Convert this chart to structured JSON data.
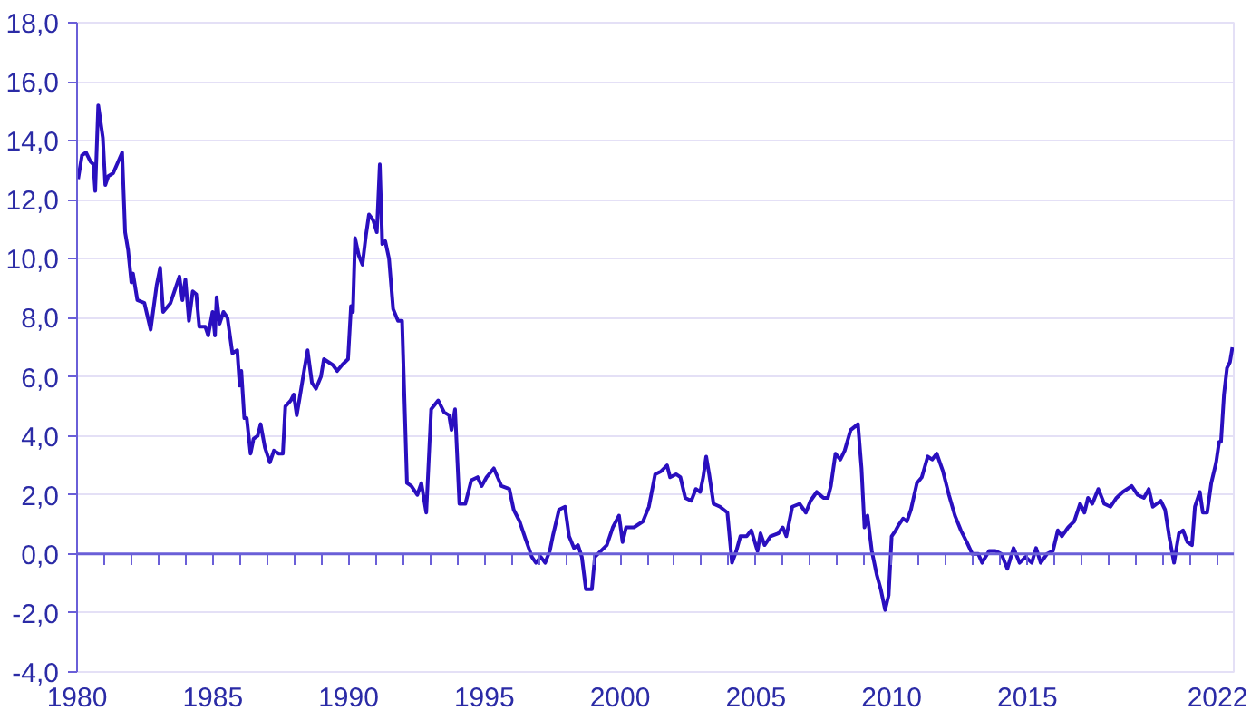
{
  "chart_data": {
    "type": "line",
    "color": "#2a0fbf",
    "grid": "y",
    "line_style": "solid",
    "ref_lines": [
      {
        "axis": "y",
        "value": 0,
        "color": "#6a5fd8"
      }
    ],
    "xlim": [
      1980,
      2022.6
    ],
    "ylim": [
      -4,
      18
    ],
    "yticks": [
      {
        "value": -4,
        "label": "-4,0"
      },
      {
        "value": -2,
        "label": "-2,0"
      },
      {
        "value": 0,
        "label": "0,0"
      },
      {
        "value": 2,
        "label": "2,0"
      },
      {
        "value": 4,
        "label": "4,0"
      },
      {
        "value": 6,
        "label": "6,0"
      },
      {
        "value": 8,
        "label": "8,0"
      },
      {
        "value": 10,
        "label": "10,0"
      },
      {
        "value": 12,
        "label": "12,0"
      },
      {
        "value": 14,
        "label": "14,0"
      },
      {
        "value": 16,
        "label": "16,0"
      },
      {
        "value": 18,
        "label": "18,0"
      }
    ],
    "xticks": [
      1980,
      {
        "value": 1981,
        "label": null
      },
      {
        "value": 1982,
        "label": null
      },
      {
        "value": 1983,
        "label": null
      },
      {
        "value": 1984,
        "label": null
      },
      1985,
      {
        "value": 1986,
        "label": null
      },
      {
        "value": 1987,
        "label": null
      },
      {
        "value": 1988,
        "label": null
      },
      {
        "value": 1989,
        "label": null
      },
      1990,
      {
        "value": 1991,
        "label": null
      },
      {
        "value": 1992,
        "label": null
      },
      {
        "value": 1993,
        "label": null
      },
      {
        "value": 1994,
        "label": null
      },
      1995,
      {
        "value": 1996,
        "label": null
      },
      {
        "value": 1997,
        "label": null
      },
      {
        "value": 1998,
        "label": null
      },
      {
        "value": 1999,
        "label": null
      },
      2000,
      {
        "value": 2001,
        "label": null
      },
      {
        "value": 2002,
        "label": null
      },
      {
        "value": 2003,
        "label": null
      },
      {
        "value": 2004,
        "label": null
      },
      2005,
      {
        "value": 2006,
        "label": null
      },
      {
        "value": 2007,
        "label": null
      },
      {
        "value": 2008,
        "label": null
      },
      {
        "value": 2009,
        "label": null
      },
      2010,
      {
        "value": 2011,
        "label": null
      },
      {
        "value": 2012,
        "label": null
      },
      {
        "value": 2013,
        "label": null
      },
      {
        "value": 2014,
        "label": null
      },
      2015,
      {
        "value": 2016,
        "label": null
      },
      {
        "value": 2017,
        "label": null
      },
      {
        "value": 2018,
        "label": null
      },
      {
        "value": 2019,
        "label": null
      },
      {
        "value": 2020,
        "label": null
      },
      {
        "value": 2021,
        "label": null
      },
      2022
    ],
    "x": [
      1980.04,
      1980.18,
      1980.33,
      1980.49,
      1980.6,
      1980.67,
      1980.78,
      1980.95,
      1981.04,
      1981.15,
      1981.33,
      1981.66,
      1981.77,
      1981.88,
      1982.0,
      1982.06,
      1982.22,
      1982.48,
      1982.71,
      1982.93,
      1983.06,
      1983.17,
      1983.44,
      1983.77,
      1983.88,
      1983.99,
      1984.12,
      1984.26,
      1984.39,
      1984.5,
      1984.72,
      1984.83,
      1984.99,
      1985.08,
      1985.14,
      1985.25,
      1985.39,
      1985.54,
      1985.72,
      1985.9,
      1985.99,
      1986.05,
      1986.16,
      1986.25,
      1986.39,
      1986.5,
      1986.65,
      1986.76,
      1986.92,
      1987.1,
      1987.25,
      1987.43,
      1987.58,
      1987.67,
      1987.87,
      1987.98,
      1988.09,
      1988.2,
      1988.36,
      1988.49,
      1988.65,
      1988.8,
      1988.98,
      1989.09,
      1989.42,
      1989.58,
      1989.76,
      1989.98,
      1990.09,
      1990.16,
      1990.24,
      1990.38,
      1990.51,
      1990.64,
      1990.75,
      1990.91,
      1991.04,
      1991.15,
      1991.24,
      1991.35,
      1991.49,
      1991.64,
      1991.82,
      1991.97,
      1992.15,
      1992.31,
      1992.53,
      1992.68,
      1992.86,
      1993.04,
      1993.3,
      1993.52,
      1993.7,
      1993.79,
      1993.92,
      1994.08,
      1994.3,
      1994.52,
      1994.75,
      1994.9,
      1995.08,
      1995.35,
      1995.63,
      1995.92,
      1996.08,
      1996.3,
      1996.52,
      1996.75,
      1996.9,
      1997.08,
      1997.24,
      1997.41,
      1997.52,
      1997.75,
      1997.97,
      1998.12,
      1998.3,
      1998.45,
      1998.59,
      1998.74,
      1998.96,
      1999.07,
      1999.29,
      1999.51,
      1999.73,
      1999.96,
      2000.09,
      2000.22,
      2000.51,
      2000.84,
      2001.06,
      2001.29,
      2001.51,
      2001.73,
      2001.84,
      2002.06,
      2002.22,
      2002.4,
      2002.62,
      2002.79,
      2002.95,
      2003.06,
      2003.17,
      2003.28,
      2003.44,
      2003.68,
      2003.95,
      2004.12,
      2004.28,
      2004.43,
      2004.66,
      2004.83,
      2005.06,
      2005.17,
      2005.32,
      2005.54,
      2005.83,
      2005.99,
      2006.12,
      2006.34,
      2006.61,
      2006.84,
      2007.01,
      2007.24,
      2007.49,
      2007.65,
      2007.76,
      2007.93,
      2008.11,
      2008.27,
      2008.49,
      2008.76,
      2008.89,
      2009.0,
      2009.11,
      2009.27,
      2009.45,
      2009.6,
      2009.76,
      2009.89,
      2010.0,
      2010.15,
      2010.27,
      2010.42,
      2010.56,
      2010.71,
      2010.93,
      2011.11,
      2011.33,
      2011.49,
      2011.66,
      2011.89,
      2012.11,
      2012.33,
      2012.55,
      2012.77,
      2012.97,
      2013.19,
      2013.33,
      2013.59,
      2013.82,
      2014.04,
      2014.26,
      2014.49,
      2014.71,
      2014.93,
      2015.16,
      2015.32,
      2015.49,
      2015.72,
      2015.94,
      2016.12,
      2016.27,
      2016.5,
      2016.72,
      2016.94,
      2017.1,
      2017.23,
      2017.39,
      2017.61,
      2017.83,
      2018.06,
      2018.28,
      2018.51,
      2018.84,
      2019.06,
      2019.29,
      2019.47,
      2019.62,
      2019.91,
      2020.07,
      2020.22,
      2020.4,
      2020.58,
      2020.73,
      2020.89,
      2021.06,
      2021.17,
      2021.35,
      2021.46,
      2021.62,
      2021.77,
      2021.95,
      2022.06,
      2022.13,
      2022.24,
      2022.35,
      2022.46,
      2022.55
    ],
    "values": [
      12.7,
      13.5,
      13.6,
      13.3,
      13.2,
      12.3,
      15.2,
      14.1,
      12.5,
      12.8,
      12.9,
      13.6,
      10.9,
      10.3,
      9.2,
      9.5,
      8.6,
      8.5,
      7.6,
      9.1,
      9.7,
      8.2,
      8.5,
      9.4,
      8.6,
      9.3,
      7.9,
      8.9,
      8.8,
      7.7,
      7.7,
      7.4,
      8.2,
      7.4,
      8.7,
      7.8,
      8.2,
      8.0,
      6.8,
      6.9,
      5.7,
      6.2,
      4.6,
      4.6,
      3.4,
      3.9,
      4.0,
      4.4,
      3.6,
      3.1,
      3.5,
      3.4,
      3.4,
      5.0,
      5.2,
      5.4,
      4.7,
      5.3,
      6.2,
      6.9,
      5.8,
      5.6,
      6.0,
      6.6,
      6.4,
      6.2,
      6.4,
      6.6,
      8.4,
      8.2,
      10.7,
      10.1,
      9.8,
      10.8,
      11.5,
      11.3,
      10.9,
      13.2,
      10.5,
      10.6,
      10.0,
      8.3,
      7.9,
      7.9,
      2.4,
      2.3,
      2.0,
      2.4,
      1.4,
      4.9,
      5.2,
      4.8,
      4.7,
      4.2,
      4.9,
      1.7,
      1.7,
      2.5,
      2.6,
      2.3,
      2.6,
      2.9,
      2.3,
      2.2,
      1.5,
      1.1,
      0.5,
      -0.1,
      -0.3,
      -0.1,
      -0.3,
      0.1,
      0.6,
      1.5,
      1.6,
      0.6,
      0.2,
      0.3,
      -0.1,
      -1.2,
      -1.2,
      -0.1,
      0.1,
      0.3,
      0.9,
      1.3,
      0.4,
      0.9,
      0.9,
      1.1,
      1.6,
      2.7,
      2.8,
      3.0,
      2.6,
      2.7,
      2.6,
      1.9,
      1.8,
      2.2,
      2.1,
      2.6,
      3.3,
      2.7,
      1.7,
      1.6,
      1.4,
      -0.3,
      0.1,
      0.6,
      0.6,
      0.8,
      0.1,
      0.7,
      0.3,
      0.6,
      0.7,
      0.9,
      0.6,
      1.6,
      1.7,
      1.4,
      1.8,
      2.1,
      1.9,
      1.9,
      2.3,
      3.4,
      3.2,
      3.5,
      4.2,
      4.4,
      2.9,
      0.9,
      1.3,
      0.1,
      -0.7,
      -1.2,
      -1.9,
      -1.4,
      0.6,
      0.8,
      1.0,
      1.2,
      1.1,
      1.5,
      2.4,
      2.6,
      3.3,
      3.2,
      3.4,
      2.8,
      2.0,
      1.3,
      0.8,
      0.4,
      0.0,
      0.0,
      -0.3,
      0.1,
      0.1,
      0.0,
      -0.5,
      0.2,
      -0.3,
      -0.1,
      -0.3,
      0.2,
      -0.3,
      0.0,
      0.1,
      0.8,
      0.6,
      0.9,
      1.1,
      1.7,
      1.4,
      1.9,
      1.7,
      2.2,
      1.7,
      1.6,
      1.9,
      2.1,
      2.3,
      2.0,
      1.9,
      2.2,
      1.6,
      1.8,
      1.5,
      0.6,
      -0.3,
      0.7,
      0.8,
      0.4,
      0.3,
      1.6,
      2.1,
      1.4,
      1.4,
      2.4,
      3.1,
      3.8,
      3.8,
      5.4,
      6.3,
      6.5,
      7.0
    ]
  }
}
